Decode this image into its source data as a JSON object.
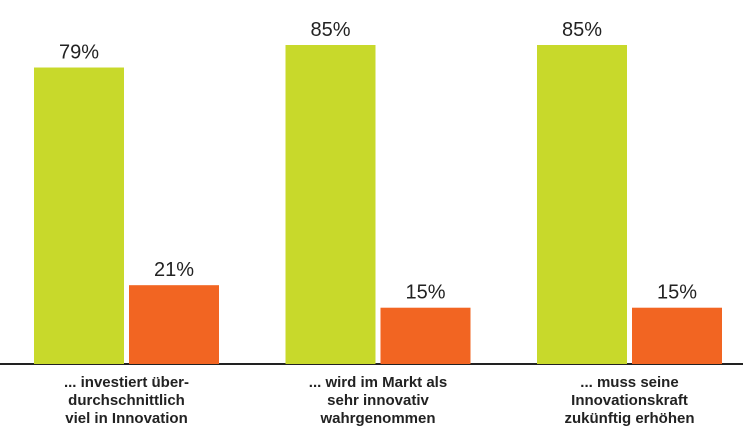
{
  "chart_data": {
    "type": "bar",
    "categories": [
      "... investiert über-\ndurchschnittlich\nviel in Innovation",
      "... wird im Markt als\nsehr innovativ\nwahrgenommen",
      "... muss seine\nInnovationskraft\nzukünftig erhöhen"
    ],
    "series": [
      {
        "color": "#c8d92b",
        "values": [
          79,
          85,
          85
        ],
        "value_labels": [
          "79%",
          "85%",
          "85%"
        ]
      },
      {
        "color": "#f26522",
        "values": [
          21,
          15,
          15
        ],
        "value_labels": [
          "21%",
          "15%",
          "15%"
        ]
      }
    ]
  }
}
